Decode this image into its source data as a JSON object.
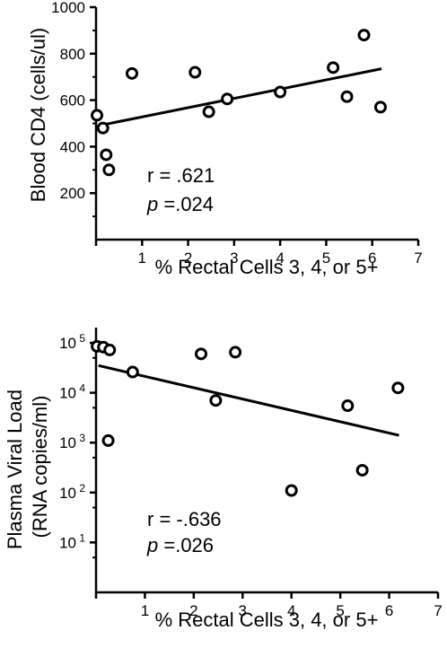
{
  "chart_data": [
    {
      "type": "scatter",
      "xlabel": "% Rectal Cells 3, 4, or 5+",
      "ylabel": "Blood CD4 (cells/ul)",
      "xlim": [
        0,
        7
      ],
      "ylim": [
        0,
        1000
      ],
      "x_ticks": [
        "1",
        "2",
        "3",
        "4",
        "5",
        "6",
        "7"
      ],
      "y_ticks": [
        "200",
        "400",
        "600",
        "800",
        "1000"
      ],
      "points": [
        {
          "x": 0.02,
          "y": 535
        },
        {
          "x": 0.15,
          "y": 480
        },
        {
          "x": 0.22,
          "y": 365
        },
        {
          "x": 0.28,
          "y": 300
        },
        {
          "x": 0.78,
          "y": 715
        },
        {
          "x": 2.15,
          "y": 720
        },
        {
          "x": 2.45,
          "y": 550
        },
        {
          "x": 2.85,
          "y": 605
        },
        {
          "x": 4.0,
          "y": 635
        },
        {
          "x": 5.15,
          "y": 740
        },
        {
          "x": 5.45,
          "y": 615
        },
        {
          "x": 5.82,
          "y": 880
        },
        {
          "x": 6.18,
          "y": 570
        }
      ],
      "trendline": {
        "x": [
          0.05,
          6.2
        ],
        "y": [
          490,
          735
        ]
      },
      "r_text": "r = .621",
      "p_symbol": "p",
      "p_value": " =.024"
    },
    {
      "type": "scatter",
      "xlabel": "% Rectal Cells 3, 4, or 5+",
      "ylabel_lines": [
        "Plasma Viral Load",
        "(RNA copies/ml)"
      ],
      "y_scale": "log",
      "xlim": [
        0,
        7
      ],
      "ylim": [
        1,
        100000
      ],
      "x_ticks": [
        "1",
        "2",
        "3",
        "4",
        "5",
        "6",
        "7"
      ],
      "y_ticks": [
        {
          "base": "10",
          "exp": "1"
        },
        {
          "base": "10",
          "exp": "2"
        },
        {
          "base": "10",
          "exp": "3"
        },
        {
          "base": "10",
          "exp": "4"
        },
        {
          "base": "10",
          "exp": "5"
        }
      ],
      "points": [
        {
          "x": 0.02,
          "y": 85000
        },
        {
          "x": 0.15,
          "y": 82000
        },
        {
          "x": 0.28,
          "y": 72000
        },
        {
          "x": 0.25,
          "y": 1100
        },
        {
          "x": 0.75,
          "y": 26000
        },
        {
          "x": 2.15,
          "y": 60000
        },
        {
          "x": 2.45,
          "y": 7000
        },
        {
          "x": 2.85,
          "y": 65000
        },
        {
          "x": 4.0,
          "y": 110
        },
        {
          "x": 5.15,
          "y": 5500
        },
        {
          "x": 5.45,
          "y": 280
        },
        {
          "x": 6.18,
          "y": 12500
        }
      ],
      "trendline": {
        "x": [
          0.05,
          6.2
        ],
        "y": [
          35000,
          1400
        ]
      },
      "r_text": "r = -.636",
      "p_symbol": "p",
      "p_value": " =.026"
    }
  ]
}
